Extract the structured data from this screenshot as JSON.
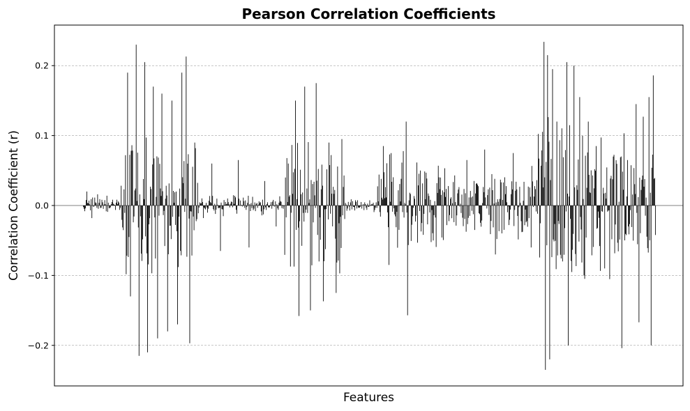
{
  "chart_data": {
    "type": "bar",
    "title": "Pearson Correlation Coefficients",
    "xlabel": "Features",
    "ylabel": "Correlation Coefficient (r)",
    "ylim": [
      -0.258,
      0.258
    ],
    "yticks": [
      -0.2,
      -0.1,
      0.0,
      0.1,
      0.2
    ],
    "ytick_labels": [
      "−0.2",
      "−0.1",
      "0.0",
      "0.1",
      "0.2"
    ],
    "xticks_visible": false,
    "grid": {
      "y": true,
      "style": "dashed"
    },
    "bar_color": "#000000",
    "zero_line_color": "#808080",
    "segments": [
      {
        "n": 52,
        "base": 0.006,
        "spread": 0.006,
        "spikes": [
          [
            5,
            0.02
          ],
          [
            12,
            -0.018
          ],
          [
            20,
            0.016
          ],
          [
            33,
            0.014
          ]
        ]
      },
      {
        "n": 110,
        "base": 0.05,
        "spread": 0.07,
        "spikes": [
          [
            10,
            0.19
          ],
          [
            14,
            -0.13
          ],
          [
            22,
            0.23
          ],
          [
            26,
            -0.215
          ],
          [
            34,
            0.205
          ],
          [
            38,
            -0.21
          ],
          [
            46,
            0.17
          ],
          [
            52,
            -0.19
          ],
          [
            58,
            0.16
          ],
          [
            66,
            -0.18
          ],
          [
            72,
            0.15
          ],
          [
            80,
            -0.17
          ],
          [
            86,
            0.19
          ],
          [
            92,
            0.213
          ],
          [
            97,
            -0.197
          ],
          [
            104,
            0.09
          ]
        ]
      },
      {
        "n": 120,
        "base": 0.004,
        "spread": 0.012,
        "spikes": [
          [
            18,
            0.06
          ],
          [
            30,
            -0.065
          ],
          [
            55,
            0.065
          ],
          [
            70,
            -0.06
          ],
          [
            92,
            0.035
          ],
          [
            108,
            -0.03
          ]
        ]
      },
      {
        "n": 85,
        "base": 0.05,
        "spread": 0.05,
        "spikes": [
          [
            15,
            0.15
          ],
          [
            20,
            -0.158
          ],
          [
            28,
            0.17
          ],
          [
            36,
            -0.15
          ],
          [
            44,
            0.175
          ],
          [
            54,
            -0.137
          ],
          [
            62,
            0.09
          ],
          [
            72,
            -0.125
          ],
          [
            80,
            0.095
          ]
        ]
      },
      {
        "n": 45,
        "base": 0.004,
        "spread": 0.008,
        "spikes": []
      },
      {
        "n": 95,
        "base": 0.035,
        "spread": 0.03,
        "spikes": [
          [
            8,
            0.085
          ],
          [
            16,
            -0.085
          ],
          [
            40,
            0.12
          ],
          [
            42,
            -0.157
          ],
          [
            60,
            0.05
          ],
          [
            78,
            -0.05
          ],
          [
            88,
            0.04
          ]
        ]
      },
      {
        "n": 130,
        "base": 0.02,
        "spread": 0.035,
        "spikes": [
          [
            30,
            0.065
          ],
          [
            55,
            0.08
          ],
          [
            70,
            -0.07
          ],
          [
            95,
            0.075
          ],
          [
            120,
            -0.06
          ]
        ]
      },
      {
        "n": 75,
        "base": 0.06,
        "spread": 0.07,
        "spikes": [
          [
            8,
            0.234
          ],
          [
            10,
            -0.235
          ],
          [
            13,
            0.215
          ],
          [
            16,
            -0.22
          ],
          [
            20,
            0.195
          ],
          [
            26,
            0.12
          ],
          [
            34,
            -0.08
          ],
          [
            40,
            0.205
          ],
          [
            42,
            -0.2
          ],
          [
            50,
            0.2
          ],
          [
            58,
            0.155
          ],
          [
            64,
            -0.1
          ],
          [
            70,
            0.12
          ]
        ]
      },
      {
        "n": 90,
        "base": 0.04,
        "spread": 0.05,
        "spikes": [
          [
            6,
            0.085
          ],
          [
            18,
            -0.09
          ],
          [
            30,
            0.07
          ],
          [
            42,
            -0.204
          ],
          [
            50,
            0.065
          ],
          [
            62,
            0.145
          ],
          [
            66,
            -0.167
          ],
          [
            72,
            0.127
          ],
          [
            80,
            0.155
          ],
          [
            83,
            -0.2
          ],
          [
            86,
            0.186
          ]
        ]
      }
    ]
  }
}
